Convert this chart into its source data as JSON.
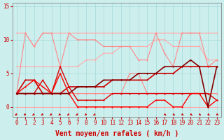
{
  "xlabel": "Vent moyen/en rafales ( km/h )",
  "xlim": [
    -0.5,
    23.5
  ],
  "ylim": [
    -1.5,
    15.5
  ],
  "yticks": [
    0,
    5,
    10,
    15
  ],
  "xticks": [
    0,
    1,
    2,
    3,
    4,
    5,
    6,
    7,
    8,
    9,
    10,
    11,
    12,
    13,
    14,
    15,
    16,
    17,
    18,
    19,
    20,
    21,
    22,
    23
  ],
  "background_color": "#cceeed",
  "grid_color": "#aadddd",
  "series": [
    {
      "x": [
        0,
        1,
        2,
        3,
        4,
        5,
        6,
        7,
        8,
        9,
        10,
        11,
        12,
        13,
        14,
        15,
        16,
        17,
        18,
        19,
        20,
        21,
        22,
        23
      ],
      "y": [
        11,
        11,
        9,
        11,
        11,
        11,
        11,
        11,
        11,
        11,
        11,
        11,
        11,
        11,
        11,
        11,
        11,
        11,
        11,
        11,
        11,
        11,
        11,
        11
      ],
      "color": "#ffaaaa",
      "lw": 0.8,
      "marker": "+"
    },
    {
      "x": [
        0,
        1,
        2,
        3,
        4,
        5,
        6,
        7,
        8,
        9,
        10,
        11,
        12,
        13,
        14,
        15,
        16,
        17,
        18,
        19,
        20,
        21,
        22,
        23
      ],
      "y": [
        6,
        6,
        6,
        6,
        6,
        6,
        6,
        6,
        7,
        7,
        8,
        8,
        9,
        9,
        9,
        9,
        10,
        10,
        9,
        9,
        9,
        9,
        7,
        7
      ],
      "color": "#ffaaaa",
      "lw": 0.8,
      "marker": "+"
    },
    {
      "x": [
        0,
        1,
        2,
        3,
        4,
        5,
        6,
        7,
        8,
        9,
        10,
        11,
        12,
        13,
        14,
        15,
        16,
        17,
        18,
        19,
        20,
        21,
        22,
        23
      ],
      "y": [
        0,
        0,
        0,
        0,
        0,
        0,
        0,
        0,
        0,
        0,
        0,
        0,
        0,
        0,
        0,
        0,
        0,
        0,
        0,
        0,
        0,
        0,
        0,
        0
      ],
      "color": "#ffaaaa",
      "lw": 0.8,
      "marker": "+"
    },
    {
      "x": [
        0,
        1,
        2,
        3,
        4,
        5,
        6,
        7,
        8,
        9,
        10,
        11,
        12,
        13,
        14,
        15,
        16,
        17,
        18,
        19,
        20,
        21,
        22,
        23
      ],
      "y": [
        2,
        11,
        9,
        11,
        11,
        6,
        11,
        10,
        10,
        10,
        9,
        9,
        9,
        9,
        7,
        7,
        11,
        8,
        6,
        11,
        11,
        11,
        6,
        7
      ],
      "color": "#ff8888",
      "lw": 0.8,
      "marker": "+"
    },
    {
      "x": [
        0,
        1,
        2,
        3,
        4,
        5,
        6,
        7,
        8,
        9,
        10,
        11,
        12,
        13,
        14,
        15,
        16,
        17,
        18,
        19,
        20,
        21,
        22,
        23
      ],
      "y": [
        2,
        2,
        2,
        2,
        2,
        2,
        2,
        2,
        2,
        2,
        2,
        2,
        2,
        5,
        5,
        2,
        2,
        2,
        2,
        2,
        2,
        2,
        2,
        2
      ],
      "color": "#ff8888",
      "lw": 0.8,
      "marker": "+"
    },
    {
      "x": [
        0,
        1,
        2,
        3,
        4,
        5,
        6,
        7,
        8,
        9,
        10,
        11,
        12,
        13,
        14,
        15,
        16,
        17,
        18,
        19,
        20,
        21,
        22,
        23
      ],
      "y": [
        2,
        4,
        4,
        2,
        2,
        2,
        3,
        3,
        3,
        3,
        3,
        4,
        4,
        4,
        4,
        4,
        5,
        5,
        5,
        6,
        6,
        6,
        6,
        6
      ],
      "color": "#cc0000",
      "lw": 1.2,
      "marker": "+"
    },
    {
      "x": [
        0,
        1,
        2,
        3,
        4,
        5,
        6,
        7,
        8,
        9,
        10,
        11,
        12,
        13,
        14,
        15,
        16,
        17,
        18,
        19,
        20,
        21,
        22,
        23
      ],
      "y": [
        2,
        2,
        2,
        4,
        2,
        6,
        3,
        1,
        1,
        1,
        1,
        2,
        2,
        2,
        2,
        2,
        2,
        2,
        2,
        2,
        2,
        2,
        2,
        1
      ],
      "color": "#dd0000",
      "lw": 1.0,
      "marker": "+"
    },
    {
      "x": [
        0,
        1,
        2,
        3,
        4,
        5,
        6,
        7,
        8,
        9,
        10,
        11,
        12,
        13,
        14,
        15,
        16,
        17,
        18,
        19,
        20,
        21,
        22,
        23
      ],
      "y": [
        2,
        3,
        4,
        3,
        2,
        5,
        2,
        0,
        0,
        0,
        0,
        0,
        0,
        0,
        0,
        0,
        1,
        1,
        0,
        0,
        2,
        2,
        0,
        1
      ],
      "color": "#ff0000",
      "lw": 1.0,
      "marker": "+"
    },
    {
      "x": [
        0,
        1,
        2,
        3,
        4,
        5,
        6,
        7,
        8,
        9,
        10,
        11,
        12,
        13,
        14,
        15,
        16,
        17,
        18,
        19,
        20,
        21,
        22,
        23
      ],
      "y": [
        2,
        2,
        2,
        2,
        2,
        2,
        2,
        3,
        3,
        3,
        4,
        4,
        4,
        4,
        5,
        5,
        5,
        6,
        6,
        6,
        7,
        6,
        0,
        6
      ],
      "color": "#880000",
      "lw": 1.2,
      "marker": "+"
    }
  ],
  "arrows_left": [
    0,
    1,
    2,
    3,
    4,
    5,
    6,
    7,
    8,
    9
  ],
  "arrows_right": [
    17,
    18,
    19,
    20,
    21,
    22,
    23
  ],
  "tick_fontsize": 5.5,
  "label_fontsize": 7
}
